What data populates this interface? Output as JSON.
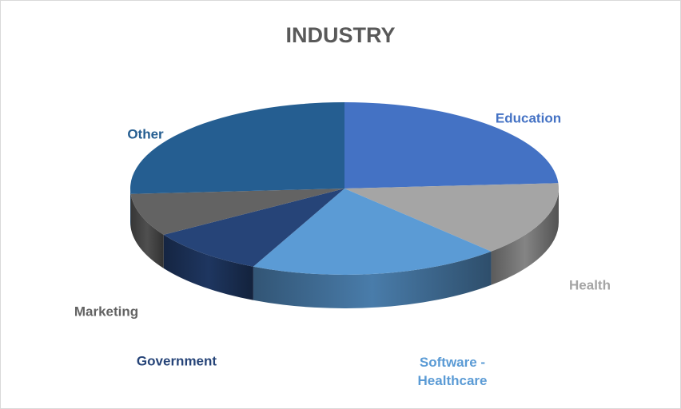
{
  "chart_data": {
    "type": "pie",
    "title": "INDUSTRY",
    "categories": [
      "Education",
      "Health",
      "Software - Healthcare",
      "Government",
      "Marketing",
      "Other"
    ],
    "values": [
      24,
      14,
      19,
      9,
      8,
      26
    ],
    "colors": [
      "#4472c4",
      "#a5a5a5",
      "#5b9bd5",
      "#264478",
      "#636363",
      "#255e91"
    ]
  }
}
